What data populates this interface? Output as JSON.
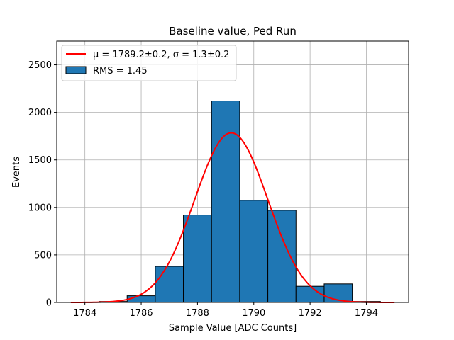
{
  "chart_data": {
    "type": "bar",
    "title": "Baseline value, Ped Run",
    "xlabel": "Sample Value [ADC Counts]",
    "ylabel": "Events",
    "xlim": [
      1783,
      1795.5
    ],
    "ylim": [
      0,
      2750
    ],
    "x_ticks": [
      1784,
      1786,
      1788,
      1790,
      1792,
      1794
    ],
    "y_ticks": [
      0,
      500,
      1000,
      1500,
      2000,
      2500
    ],
    "grid": true,
    "legend_position": "top-left",
    "histogram": {
      "name": "RMS = 1.45",
      "color": "#1f77b4",
      "edge_color": "#000000",
      "bins": [
        {
          "x0": 1784.5,
          "x1": 1785.5,
          "count": 10
        },
        {
          "x0": 1785.5,
          "x1": 1786.5,
          "count": 70
        },
        {
          "x0": 1786.5,
          "x1": 1787.5,
          "count": 380
        },
        {
          "x0": 1787.5,
          "x1": 1788.5,
          "count": 920
        },
        {
          "x0": 1788.5,
          "x1": 1789.5,
          "count": 2120
        },
        {
          "x0": 1789.5,
          "x1": 1790.5,
          "count": 1075
        },
        {
          "x0": 1790.5,
          "x1": 1791.5,
          "count": 970
        },
        {
          "x0": 1791.5,
          "x1": 1792.5,
          "count": 170
        },
        {
          "x0": 1792.5,
          "x1": 1793.5,
          "count": 195
        },
        {
          "x0": 1793.5,
          "x1": 1794.5,
          "count": 10
        }
      ]
    },
    "fit": {
      "name": "μ = 1789.2±0.2, σ = 1.3±0.2",
      "color": "#ff0000",
      "mu": 1789.2,
      "sigma": 1.3,
      "amplitude": 1785,
      "x_range": [
        1783.5,
        1795
      ]
    },
    "legend": {
      "fit_label": "μ = 1789.2±0.2, σ = 1.3±0.2",
      "hist_label": "RMS = 1.45"
    }
  }
}
